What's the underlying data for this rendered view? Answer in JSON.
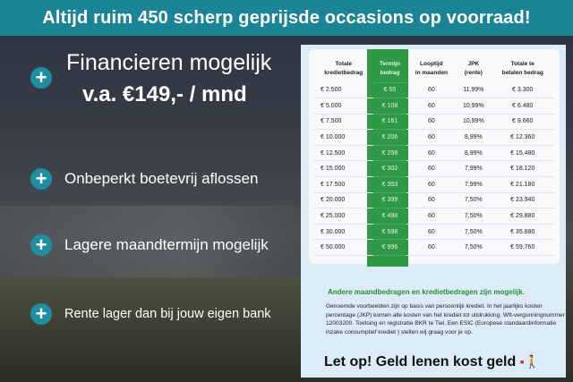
{
  "banner": "Altijd ruim 450 scherp geprijsde occasions op voorraad!",
  "left": {
    "financieren": "Financieren mogelijk",
    "price": "v.a. €149,- / mnd",
    "bullets": [
      "Onbeperkt boetevrij aflossen",
      "Lagere maandtermijn mogelijk",
      "Rente lager dan bij jouw eigen bank"
    ],
    "bullet_icon": "plus-icon"
  },
  "table": {
    "headers": [
      [
        "Totale",
        "kredietbedrag"
      ],
      [
        "Termijn",
        "bedrag"
      ],
      [
        "Looptijd",
        "in maanden"
      ],
      [
        "JPK",
        "(rente)"
      ],
      [
        "Totale te",
        "betalen bedrag"
      ]
    ],
    "rows": [
      [
        "€ 2.500",
        "€ 55",
        "60",
        "11,99%",
        "€ 3.300"
      ],
      [
        "€ 5.000",
        "€ 108",
        "60",
        "10,99%",
        "€ 6.480"
      ],
      [
        "€ 7.500",
        "€ 161",
        "60",
        "10,99%",
        "€ 9.660"
      ],
      [
        "€ 10.000",
        "€ 206",
        "60",
        "8,99%",
        "€ 12.360"
      ],
      [
        "€ 12.500",
        "€ 258",
        "60",
        "8,99%",
        "€ 15.480"
      ],
      [
        "€ 15.000",
        "€ 302",
        "60",
        "7,99%",
        "€ 18.120"
      ],
      [
        "€ 17.500",
        "€ 353",
        "60",
        "7,99%",
        "€ 21.180"
      ],
      [
        "€ 20.000",
        "€ 399",
        "60",
        "7,50%",
        "€ 23.940"
      ],
      [
        "€ 25.000",
        "€ 498",
        "60",
        "7,50%",
        "€ 29.880"
      ],
      [
        "€ 30.000",
        "€ 598",
        "60",
        "7,50%",
        "€ 35.880"
      ],
      [
        "€ 50.000",
        "€ 996",
        "60",
        "7,50%",
        "€ 59.760"
      ]
    ]
  },
  "note_heading": "Andere maandbedragen en kredietbedragen zijn mogelijk.",
  "note": "Genoemde voorbeelden zijn op basis van persoonlijk krediet. In het jaarlijks kosten percentage (JKP) komen alle kosten van het krediet tot uitdrukking. Wft-vergunningnummer 12003200. Toetsing en registratie BKR te Tiel. Een ESIC (Europese standaardinformatie inzake consumptief krediet ) stellen wij graag voor je op.",
  "warning": "Let op! Geld lenen kost geld",
  "colors": {
    "banner": "#1b8595",
    "green": "#2e9a46",
    "panel": "#dcecf6"
  }
}
